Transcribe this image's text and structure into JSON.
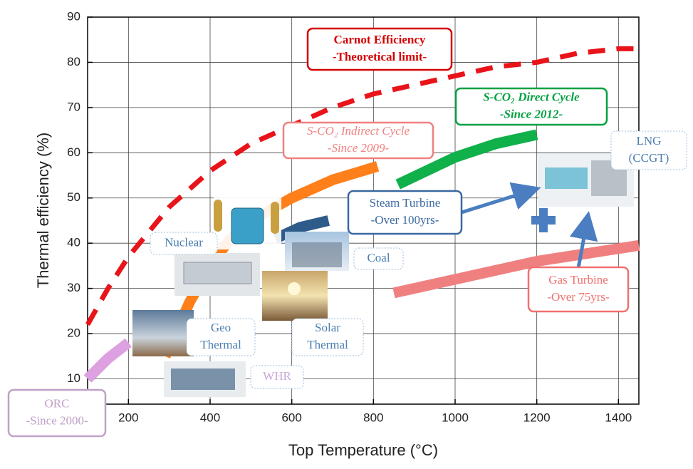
{
  "chart_data": {
    "type": "line",
    "xlabel": "Top Temperature (°C)",
    "ylabel": "Thermal efficiency (%)",
    "xlim": [
      100,
      1450
    ],
    "ylim": [
      4.4,
      90
    ],
    "xticks": [
      200,
      400,
      600,
      800,
      1000,
      1200,
      1400
    ],
    "yticks": [
      10,
      20,
      30,
      40,
      50,
      60,
      70,
      80,
      90
    ],
    "grid": true,
    "series": [
      {
        "color": "#e8141a",
        "dashed": true,
        "x": [
          100,
          150,
          200,
          300,
          400,
          500,
          600,
          700,
          800,
          900,
          1000,
          1100,
          1200,
          1300,
          1400,
          1450
        ],
        "values": [
          22,
          30,
          37,
          48,
          56,
          62,
          66,
          70,
          73,
          75,
          77,
          79,
          80,
          82,
          83,
          83
        ]
      },
      {
        "color": "#dda0e0",
        "dashed": false,
        "x": [
          100,
          150,
          200
        ],
        "values": [
          10,
          14.5,
          18
        ]
      },
      {
        "color": "#ff7f1a",
        "dashed": false,
        "x": [
          290,
          350,
          400,
          450,
          500,
          600,
          700,
          810
        ],
        "values": [
          15,
          27,
          35,
          41,
          45,
          50,
          54,
          57
        ]
      },
      {
        "color": "#2e5c8a",
        "dashed": false,
        "x": [
          560,
          620,
          690
        ],
        "values": [
          41,
          43.5,
          45
        ]
      },
      {
        "color": "#10b04a",
        "dashed": false,
        "x": [
          860,
          1000,
          1100,
          1200
        ],
        "values": [
          53,
          59,
          62,
          64
        ]
      },
      {
        "color": "#f08080",
        "dashed": false,
        "x": [
          850,
          1000,
          1200,
          1450
        ],
        "values": [
          29,
          32,
          36,
          39.5
        ]
      }
    ],
    "annotations": [
      {
        "lines": [
          "Carnot Efficiency",
          "-Theoretical limit-"
        ],
        "color": "#d40000"
      },
      {
        "lines": [
          "S-CO₂ Indirect Cycle",
          "-Since 2009-"
        ],
        "color": "#f08080"
      },
      {
        "lines": [
          "S-CO₂ Direct Cycle",
          "-Since 2012-"
        ],
        "color": "#00a040"
      },
      {
        "lines": [
          "Steam Turbine",
          "-Over 100yrs-"
        ],
        "color": "#3a68a0"
      },
      {
        "lines": [
          "LNG",
          "(CCGT)"
        ],
        "color": "#4a7eb0"
      },
      {
        "lines": [
          "Nuclear"
        ],
        "color": "#4a7eb0"
      },
      {
        "lines": [
          "Coal"
        ],
        "color": "#4a7eb0"
      },
      {
        "lines": [
          "Geo",
          "Thermal"
        ],
        "color": "#4a7eb0"
      },
      {
        "lines": [
          "Solar",
          "Thermal"
        ],
        "color": "#4a7eb0"
      },
      {
        "lines": [
          "WHR"
        ],
        "color": "#c8a8d8"
      },
      {
        "lines": [
          "ORC",
          "-Since 2000-"
        ],
        "color": "#c0a0c8"
      },
      {
        "lines": [
          "Gas Turbine",
          "-Over 75yrs-"
        ],
        "color": "#f07070"
      }
    ]
  }
}
